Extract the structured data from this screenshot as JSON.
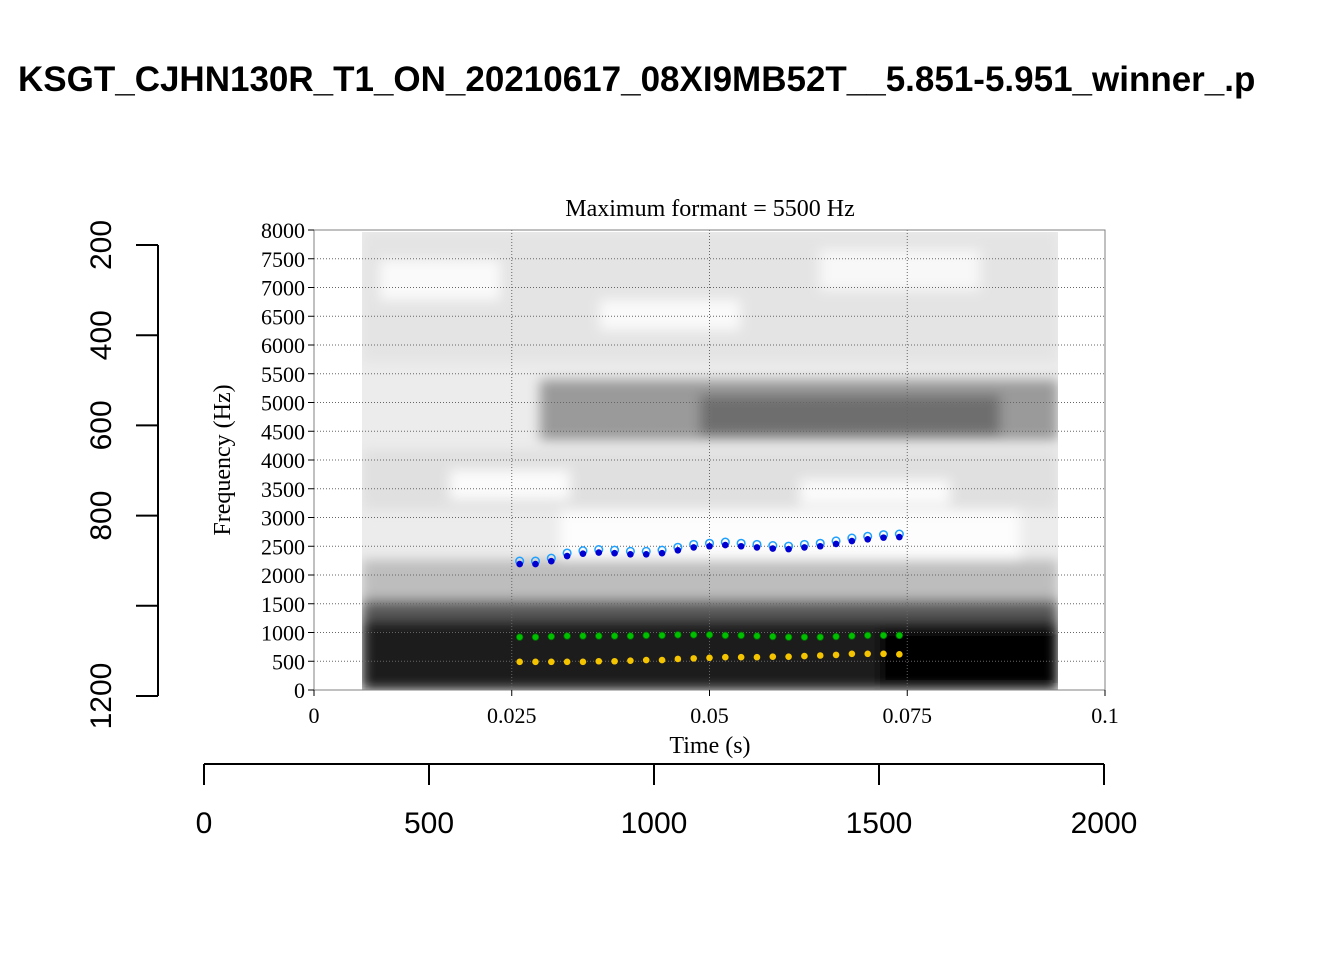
{
  "chart_data": {
    "type": "scatter",
    "title": "KSGT_CJHN130R_T1_ON_20210617_08XI9MB52T__5.851-5.951_winner_.p",
    "subtitle": "Maximum formant  =  5500 Hz",
    "xlabel": "Time (s)",
    "ylabel": "Frequency (Hz)",
    "xlim": [
      0,
      0.1
    ],
    "ylim": [
      0,
      8000
    ],
    "x_ticks": [
      "0",
      "0.025",
      "0.05",
      "0.075",
      "0.1"
    ],
    "x_tick_values": [
      0,
      0.025,
      0.05,
      0.075,
      0.1
    ],
    "y_ticks": [
      "0",
      "500",
      "1000",
      "1500",
      "2000",
      "2500",
      "3000",
      "3500",
      "4000",
      "4500",
      "5000",
      "5500",
      "6000",
      "6500",
      "7000",
      "7500",
      "8000"
    ],
    "grid": true,
    "spectrogram_time_range": [
      0.006,
      0.094
    ],
    "x": [
      0.026,
      0.028,
      0.03,
      0.032,
      0.034,
      0.036,
      0.038,
      0.04,
      0.042,
      0.044,
      0.046,
      0.048,
      0.05,
      0.052,
      0.054,
      0.056,
      0.058,
      0.06,
      0.062,
      0.064,
      0.066,
      0.068,
      0.07,
      0.072,
      0.074
    ],
    "series": [
      {
        "name": "F1",
        "color": "#f5c400",
        "values": [
          490,
          490,
          490,
          490,
          490,
          500,
          500,
          510,
          520,
          520,
          540,
          550,
          560,
          570,
          570,
          570,
          580,
          580,
          590,
          600,
          610,
          630,
          630,
          630,
          620
        ]
      },
      {
        "name": "F2",
        "color": "#00c000",
        "values": [
          920,
          920,
          930,
          940,
          940,
          940,
          940,
          940,
          950,
          950,
          960,
          960,
          960,
          950,
          950,
          940,
          930,
          920,
          920,
          920,
          930,
          940,
          950,
          950,
          950
        ]
      },
      {
        "name": "F3",
        "color": "#0000d0",
        "outline_color": "#1ea0ff",
        "values": [
          2190,
          2190,
          2240,
          2330,
          2370,
          2390,
          2380,
          2360,
          2360,
          2380,
          2430,
          2480,
          2500,
          2520,
          2500,
          2480,
          2460,
          2450,
          2480,
          2500,
          2540,
          2590,
          2620,
          2650,
          2660
        ]
      }
    ],
    "outer_left_axis": {
      "ticks": [
        "200",
        "400",
        "600",
        "800",
        "",
        "1200"
      ],
      "values": [
        200,
        400,
        600,
        800,
        1000,
        1200
      ],
      "range": [
        200,
        1200
      ]
    },
    "outer_bottom_axis": {
      "ticks": [
        "0",
        "500",
        "1000",
        "1500",
        "2000"
      ],
      "values": [
        0,
        500,
        1000,
        1500,
        2000
      ],
      "range": [
        0,
        2000
      ]
    }
  }
}
